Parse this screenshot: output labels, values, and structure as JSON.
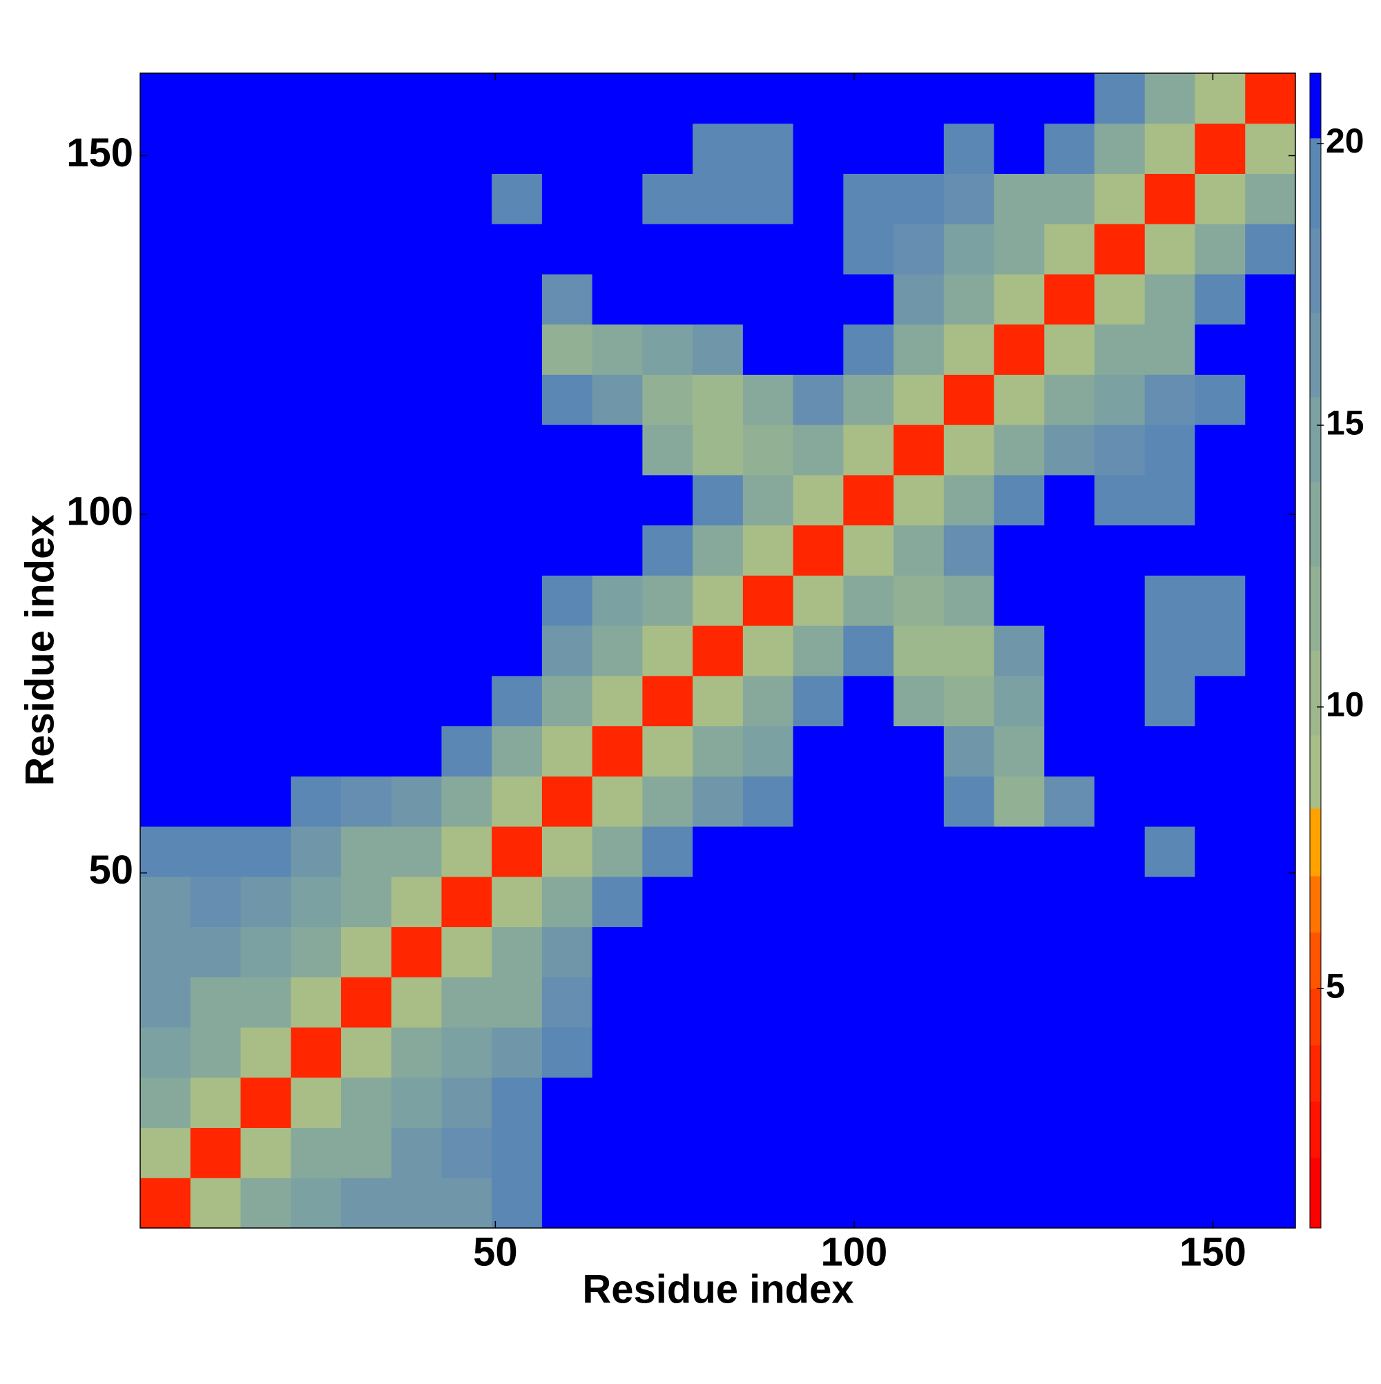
{
  "chart_data": {
    "type": "heatmap",
    "xlabel": "Residue index",
    "ylabel": "Residue index",
    "x": [
      4,
      11,
      18,
      25,
      32,
      39,
      46,
      53,
      60,
      67,
      74,
      81,
      88,
      95,
      102,
      109,
      116,
      123,
      130,
      137,
      144,
      151,
      158
    ],
    "y": [
      4,
      11,
      18,
      25,
      32,
      39,
      46,
      53,
      60,
      67,
      74,
      81,
      88,
      95,
      102,
      109,
      116,
      123,
      130,
      137,
      144,
      151,
      158
    ],
    "z": [
      [
        4,
        9,
        14,
        15,
        16,
        17,
        17,
        19,
        21,
        21,
        21,
        21,
        21,
        21,
        21,
        21,
        21,
        21,
        21,
        21,
        21,
        21,
        21
      ],
      [
        9,
        4,
        9,
        14,
        14,
        16,
        18,
        20,
        21,
        21,
        21,
        21,
        21,
        21,
        21,
        21,
        21,
        21,
        21,
        21,
        21,
        21,
        21
      ],
      [
        14,
        9,
        4,
        9,
        14,
        15,
        17,
        19,
        21,
        21,
        21,
        21,
        21,
        21,
        21,
        21,
        21,
        21,
        21,
        21,
        21,
        21,
        21
      ],
      [
        15,
        14,
        9,
        4,
        9,
        14,
        15,
        17,
        19,
        21,
        21,
        21,
        21,
        21,
        21,
        21,
        21,
        21,
        21,
        21,
        21,
        21,
        21
      ],
      [
        16,
        14,
        14,
        9,
        4,
        9,
        14,
        14,
        18,
        21,
        21,
        21,
        21,
        21,
        21,
        21,
        21,
        21,
        21,
        21,
        21,
        21,
        21
      ],
      [
        17,
        16,
        15,
        14,
        9,
        4,
        9,
        14,
        16,
        21,
        21,
        21,
        21,
        21,
        21,
        21,
        21,
        21,
        21,
        21,
        21,
        21,
        21
      ],
      [
        17,
        18,
        17,
        15,
        14,
        9,
        4,
        9,
        14,
        19,
        21,
        21,
        21,
        21,
        21,
        21,
        21,
        21,
        21,
        21,
        21,
        21,
        21
      ],
      [
        19,
        20,
        19,
        17,
        14,
        14,
        9,
        4,
        9,
        14,
        19,
        21,
        21,
        21,
        21,
        21,
        21,
        21,
        21,
        21,
        20,
        21,
        21
      ],
      [
        21,
        21,
        21,
        19,
        18,
        16,
        14,
        9,
        4,
        9,
        14,
        16,
        19,
        21,
        21,
        21,
        19,
        12,
        18,
        21,
        21,
        21,
        21
      ],
      [
        21,
        21,
        21,
        21,
        21,
        21,
        19,
        14,
        9,
        4,
        9,
        14,
        15,
        21,
        21,
        21,
        17,
        14,
        21,
        21,
        21,
        21,
        21
      ],
      [
        21,
        21,
        21,
        21,
        21,
        21,
        21,
        19,
        14,
        9,
        4,
        9,
        14,
        19,
        21,
        13,
        12,
        15,
        21,
        21,
        20,
        21,
        21
      ],
      [
        21,
        21,
        21,
        21,
        21,
        21,
        21,
        21,
        16,
        14,
        9,
        4,
        9,
        14,
        19,
        10,
        11,
        17,
        21,
        21,
        19,
        20,
        21
      ],
      [
        21,
        21,
        21,
        21,
        21,
        21,
        21,
        21,
        19,
        15,
        14,
        9,
        4,
        9,
        14,
        12,
        14,
        21,
        21,
        21,
        20,
        20,
        21
      ],
      [
        21,
        21,
        21,
        21,
        21,
        21,
        21,
        21,
        21,
        21,
        19,
        14,
        9,
        4,
        9,
        14,
        18,
        21,
        21,
        21,
        21,
        21,
        21
      ],
      [
        21,
        21,
        21,
        21,
        21,
        21,
        21,
        21,
        21,
        21,
        21,
        19,
        14,
        9,
        4,
        9,
        14,
        19,
        21,
        19,
        20,
        21,
        21
      ],
      [
        21,
        21,
        21,
        21,
        21,
        21,
        21,
        21,
        21,
        21,
        13,
        10,
        12,
        14,
        9,
        4,
        9,
        14,
        17,
        18,
        19,
        21,
        21
      ],
      [
        21,
        21,
        21,
        21,
        21,
        21,
        21,
        21,
        19,
        17,
        12,
        11,
        14,
        18,
        14,
        9,
        4,
        9,
        14,
        15,
        18,
        20,
        21
      ],
      [
        21,
        21,
        21,
        21,
        21,
        21,
        21,
        21,
        12,
        14,
        15,
        17,
        21,
        21,
        19,
        14,
        9,
        4,
        9,
        14,
        14,
        21,
        21
      ],
      [
        21,
        21,
        21,
        21,
        21,
        21,
        21,
        21,
        18,
        21,
        21,
        21,
        21,
        21,
        21,
        17,
        14,
        9,
        4,
        9,
        14,
        19,
        21
      ],
      [
        21,
        21,
        21,
        21,
        21,
        21,
        21,
        21,
        21,
        21,
        21,
        21,
        21,
        21,
        19,
        18,
        15,
        14,
        9,
        4,
        9,
        14,
        19
      ],
      [
        21,
        21,
        21,
        21,
        21,
        21,
        21,
        20,
        21,
        21,
        20,
        19,
        20,
        21,
        20,
        19,
        18,
        14,
        14,
        9,
        4,
        9,
        14
      ],
      [
        21,
        21,
        21,
        21,
        21,
        21,
        21,
        21,
        21,
        21,
        21,
        20,
        20,
        21,
        21,
        21,
        20,
        21,
        19,
        14,
        9,
        4,
        9
      ],
      [
        21,
        21,
        21,
        21,
        21,
        21,
        21,
        21,
        21,
        21,
        21,
        21,
        21,
        21,
        21,
        21,
        21,
        21,
        21,
        19,
        14,
        9,
        4
      ]
    ],
    "xlim": [
      0.5,
      161.5
    ],
    "ylim": [
      0.5,
      161.5
    ],
    "xticks": [
      50,
      100,
      150
    ],
    "yticks": [
      50,
      100,
      150
    ],
    "colorbar": {
      "lim": [
        0.75,
        21.25
      ],
      "ticks": [
        5,
        10,
        15,
        20
      ],
      "boundaries": [
        0.75,
        2,
        3,
        4,
        5,
        6,
        7,
        8.2,
        9.5,
        11,
        12.5,
        14,
        15.5,
        17,
        18.5,
        20.1,
        21.25
      ],
      "colors": [
        "#ff0000",
        "#ff1200",
        "#ff2600",
        "#ff3c00",
        "#ff5500",
        "#ff7400",
        "#ffa200",
        "#a9bd86",
        "#9db88d",
        "#92b194",
        "#86a99b",
        "#7ba1a2",
        "#7097a9",
        "#658eb0",
        "#5b87b5",
        "#0000ff"
      ]
    }
  }
}
